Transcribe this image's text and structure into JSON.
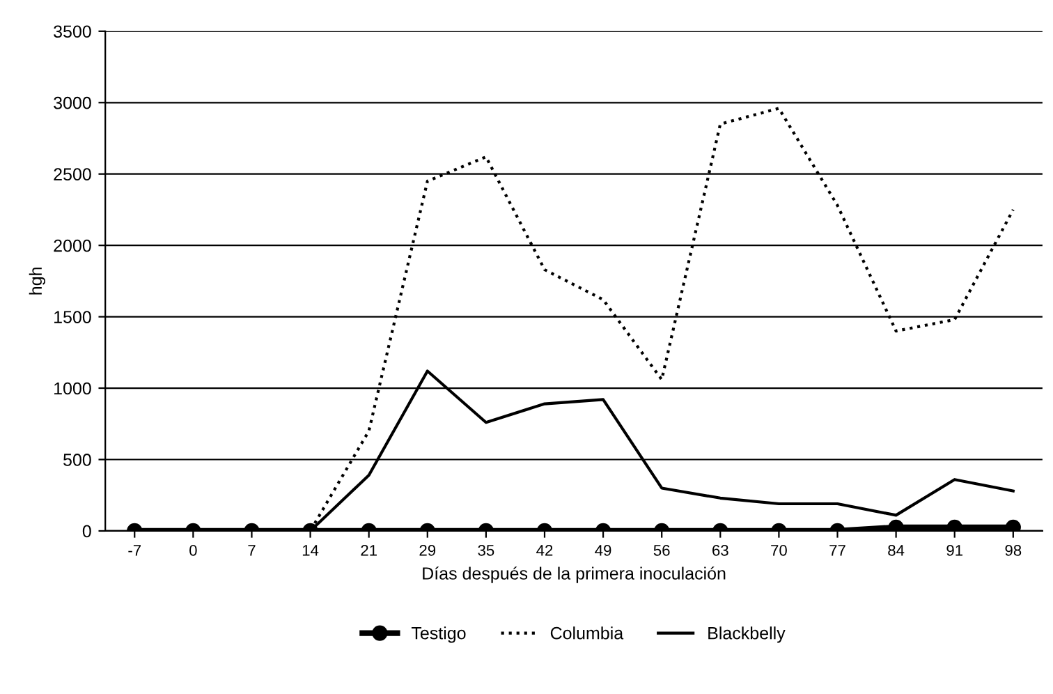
{
  "chart_data": {
    "type": "line",
    "xlabel": "Días después de la primera inoculación",
    "ylabel": "hgh",
    "categories": [
      "-7",
      "0",
      "7",
      "14",
      "21",
      "29",
      "35",
      "42",
      "49",
      "56",
      "63",
      "70",
      "77",
      "84",
      "91",
      "98"
    ],
    "series": [
      {
        "name": "Testigo",
        "color": "#000000",
        "marker": "circle",
        "line_style": "solid",
        "values": [
          0,
          0,
          0,
          0,
          0,
          0,
          0,
          0,
          0,
          0,
          0,
          0,
          0,
          25,
          25,
          25
        ]
      },
      {
        "name": "Columbia",
        "color": "#000000",
        "marker": "none",
        "line_style": "dotted",
        "values": [
          0,
          0,
          0,
          0,
          700,
          2450,
          2620,
          1830,
          1620,
          1060,
          2850,
          2960,
          2280,
          1400,
          1480,
          2250
        ]
      },
      {
        "name": "Blackbelly",
        "color": "#000000",
        "marker": "none",
        "line_style": "solid",
        "values": [
          0,
          0,
          0,
          0,
          390,
          1120,
          760,
          890,
          920,
          300,
          230,
          190,
          190,
          110,
          360,
          280
        ]
      }
    ],
    "ylim": [
      0,
      3500
    ],
    "yticks": [
      0,
      500,
      1000,
      1500,
      2000,
      2500,
      3000,
      3500
    ],
    "grid": "y",
    "legend": "bottom"
  }
}
